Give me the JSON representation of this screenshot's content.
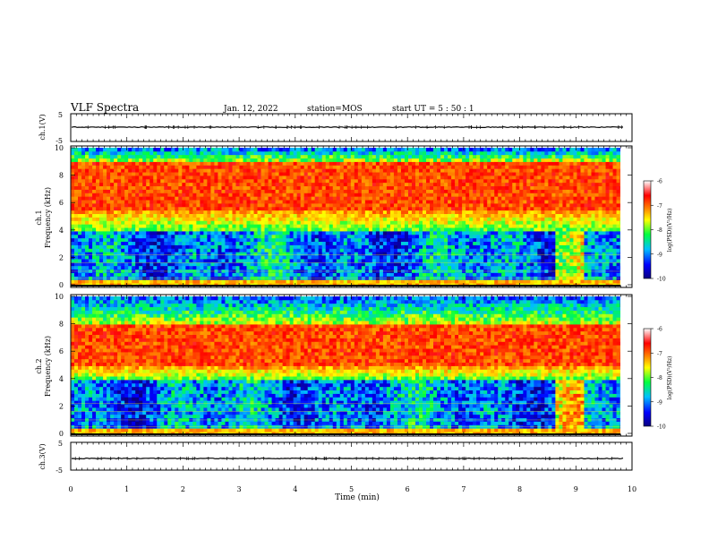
{
  "header": {
    "title": "VLF Spectra",
    "date": "Jan. 12, 2022",
    "station": "station=MOS",
    "start": "start UT =  5 : 50 : 1"
  },
  "chart_data": [
    {
      "type": "line",
      "panel": "ch1-voltage",
      "ylabel": "ch.1(V)",
      "ylim": [
        -5,
        5
      ],
      "yticks": [
        "5",
        "-5"
      ],
      "x": [
        0,
        1,
        2,
        3,
        4,
        5,
        6,
        7,
        8,
        9,
        9.85
      ],
      "values": [
        0,
        0,
        0,
        0,
        0,
        0,
        0,
        0,
        0,
        0,
        0
      ]
    },
    {
      "type": "heatmap",
      "panel": "ch1-spectrogram",
      "ylabel": "ch.1\nFrequency (kHz)",
      "ylim": [
        0,
        10
      ],
      "yticks": [
        "0",
        "2",
        "4",
        "6",
        "8",
        "10"
      ],
      "hot_band_khz": [
        5.5,
        9
      ],
      "colorbar": {
        "label": "log(PSD)(V²/Hz)",
        "ticks": [
          "-6",
          "-7",
          "-8",
          "-9",
          "-10"
        ],
        "range": [
          -10,
          -6
        ],
        "colors": [
          "#0b0080",
          "#0000ff",
          "#00c0ff",
          "#00ff40",
          "#ffff00",
          "#ff8000",
          "#ff0000",
          "#ffffff"
        ]
      }
    },
    {
      "type": "heatmap",
      "panel": "ch2-spectrogram",
      "ylabel": "ch.2\nFrequency (kHz)",
      "ylim": [
        0,
        10
      ],
      "yticks": [
        "0",
        "2",
        "4",
        "6",
        "8",
        "10"
      ],
      "hot_band_khz": [
        5,
        8
      ],
      "colorbar": {
        "label": "log(PSD)(V²/Hz)",
        "ticks": [
          "-6",
          "-7",
          "-8",
          "-9",
          "-10"
        ],
        "range": [
          -10,
          -6
        ],
        "colors": [
          "#0b0080",
          "#0000ff",
          "#00c0ff",
          "#00ff40",
          "#ffff00",
          "#ff8000",
          "#ff0000",
          "#ffffff"
        ]
      }
    },
    {
      "type": "line",
      "panel": "ch3-voltage",
      "ylabel": "ch.3(V)",
      "ylim": [
        -5,
        5
      ],
      "yticks": [
        "5",
        "-5"
      ],
      "x": [
        0,
        1,
        2,
        3,
        4,
        5,
        6,
        7,
        8,
        9,
        9.85
      ],
      "values": [
        0,
        0,
        0,
        0,
        0,
        0,
        0,
        0,
        0,
        0,
        0
      ]
    }
  ],
  "xaxis": {
    "label": "Time (min)",
    "ticks": [
      "0",
      "1",
      "2",
      "3",
      "4",
      "5",
      "6",
      "7",
      "8",
      "9",
      "10"
    ],
    "xlim": [
      0,
      10
    ],
    "data_end_min": 9.85
  }
}
